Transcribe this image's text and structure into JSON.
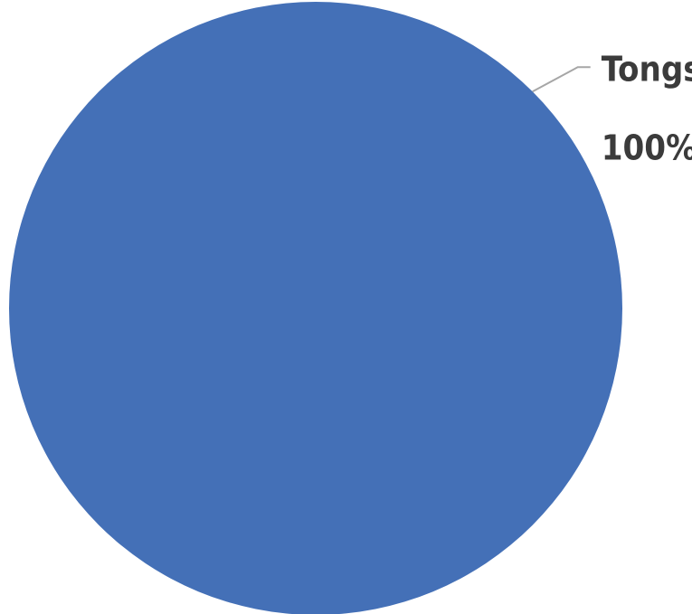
{
  "chart_data": {
    "type": "pie",
    "title": "",
    "slices": [
      {
        "name": "Tongs",
        "value": 100,
        "percent_label": "100%",
        "color": "#4470b7"
      }
    ],
    "legend": "none",
    "data_labels": "outside-end-with-leader-line"
  }
}
